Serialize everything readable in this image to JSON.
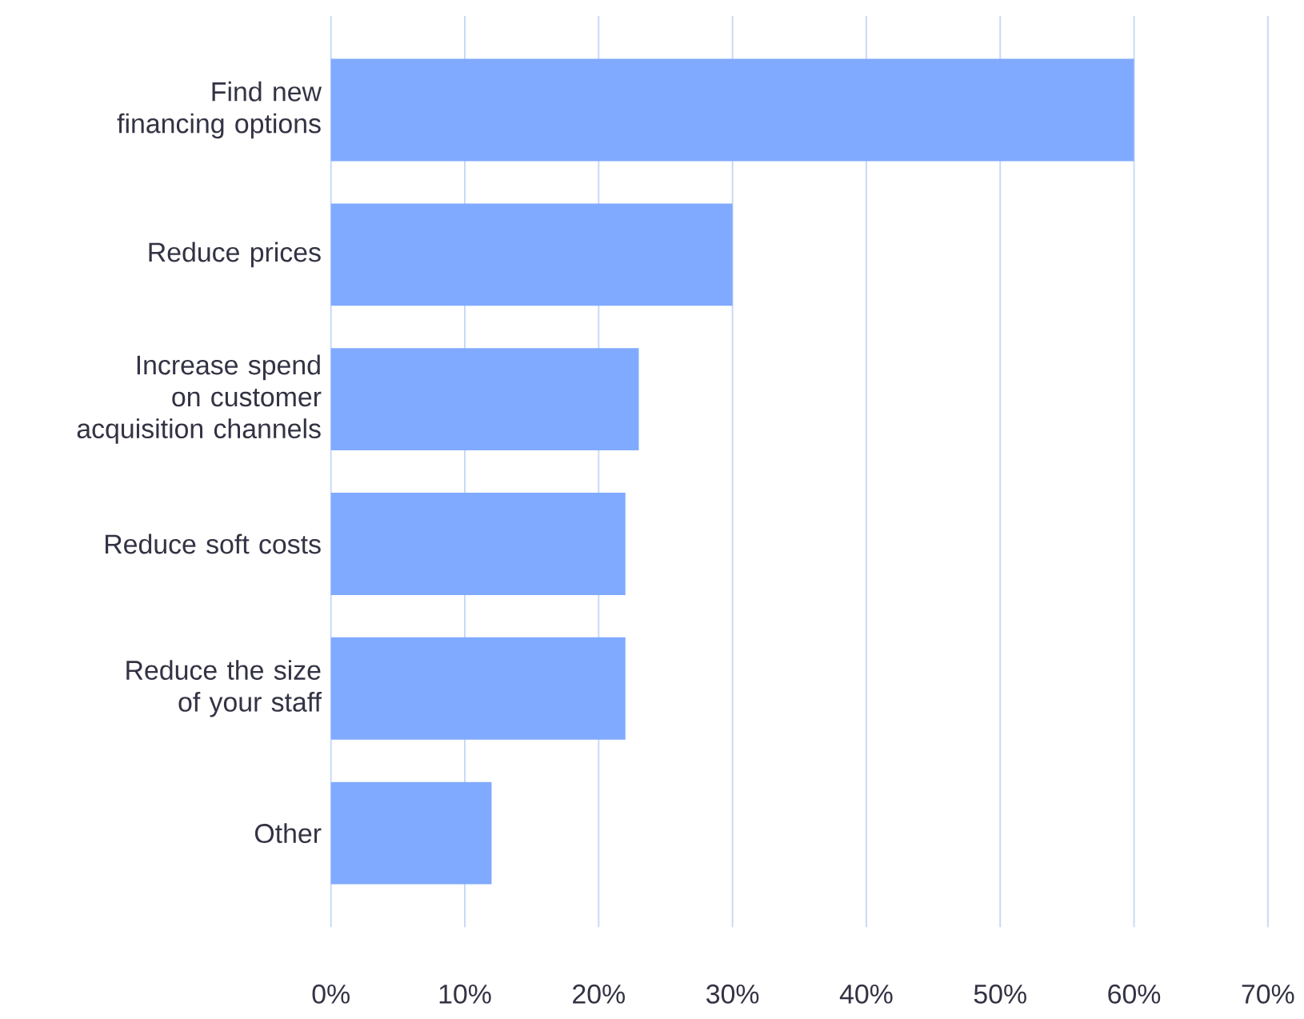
{
  "chart_data": {
    "type": "bar",
    "orientation": "horizontal",
    "categories": [
      "Find new financing options",
      "Reduce prices",
      "Increase spend on customer acquisition channels",
      "Reduce soft costs",
      "Reduce the size of your staff",
      "Other"
    ],
    "values": [
      60,
      30,
      23,
      22,
      22,
      12
    ],
    "color": "#80aaff",
    "xlim": [
      0,
      70
    ],
    "xticks": [
      {
        "value": 0,
        "label": "0%"
      },
      {
        "value": 10,
        "label": "10%"
      },
      {
        "value": 20,
        "label": "20%"
      },
      {
        "value": 30,
        "label": "30%"
      },
      {
        "value": 40,
        "label": "40%"
      },
      {
        "value": 50,
        "label": "50%"
      },
      {
        "value": 60,
        "label": "60%"
      },
      {
        "value": 70,
        "label": "70%"
      }
    ],
    "grid": "x"
  }
}
